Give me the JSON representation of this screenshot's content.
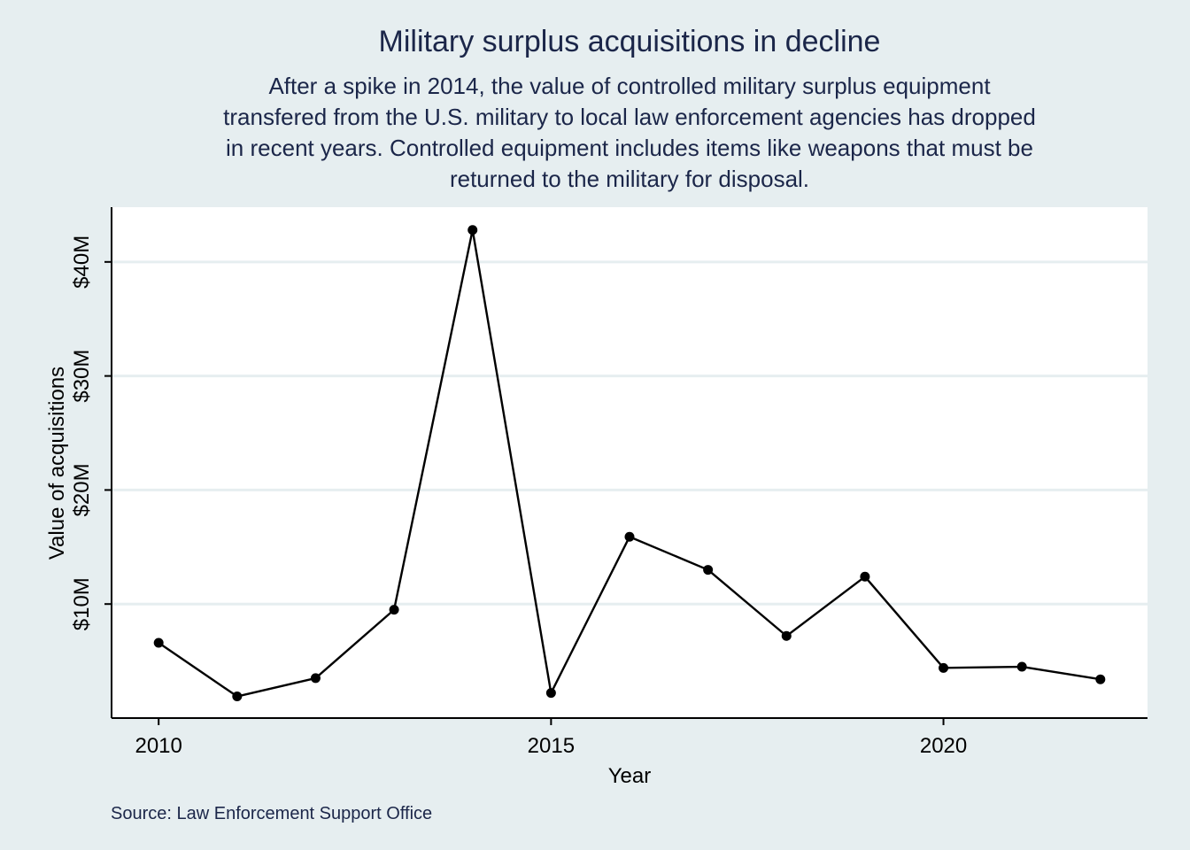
{
  "header": {
    "title": "Military surplus acquisitions in decline",
    "subtitle_lines": [
      "After a spike in 2014, the value of controlled military surplus equipment",
      "transfered from the U.S. military to local law enforcement agencies has dropped",
      "in recent years. Controlled equipment includes items like weapons that must be",
      "returned to the military for disposal."
    ]
  },
  "footer": {
    "source": "Source: Law Enforcement Support Office"
  },
  "colors": {
    "background": "#e6eef0",
    "plot": "#ffffff",
    "gridline": "#e6eef0",
    "line": "#000000",
    "text": "#1b2649"
  },
  "chart_data": {
    "type": "line",
    "xlabel": "Year",
    "ylabel": "Value of acquisitions",
    "x": [
      2010,
      2011,
      2012,
      2013,
      2014,
      2015,
      2016,
      2017,
      2018,
      2019,
      2020,
      2021,
      2022
    ],
    "series": [
      {
        "values": [
          6.6,
          1.9,
          3.5,
          9.5,
          42.8,
          2.2,
          15.9,
          13.0,
          7.2,
          12.4,
          4.4,
          4.5,
          3.4
        ]
      }
    ],
    "xlim": [
      2009.4,
      2022.6
    ],
    "ylim": [
      0,
      44.8
    ],
    "xticks": [
      {
        "value": 2010,
        "label": "2010"
      },
      {
        "value": 2015,
        "label": "2015"
      },
      {
        "value": 2020,
        "label": "2020"
      }
    ],
    "yticks": [
      {
        "value": 10,
        "label": "$10M"
      },
      {
        "value": 20,
        "label": "$20M"
      },
      {
        "value": 30,
        "label": "$30M"
      },
      {
        "value": 40,
        "label": "$40M"
      }
    ],
    "grid": "horizontal",
    "legend": "none"
  }
}
